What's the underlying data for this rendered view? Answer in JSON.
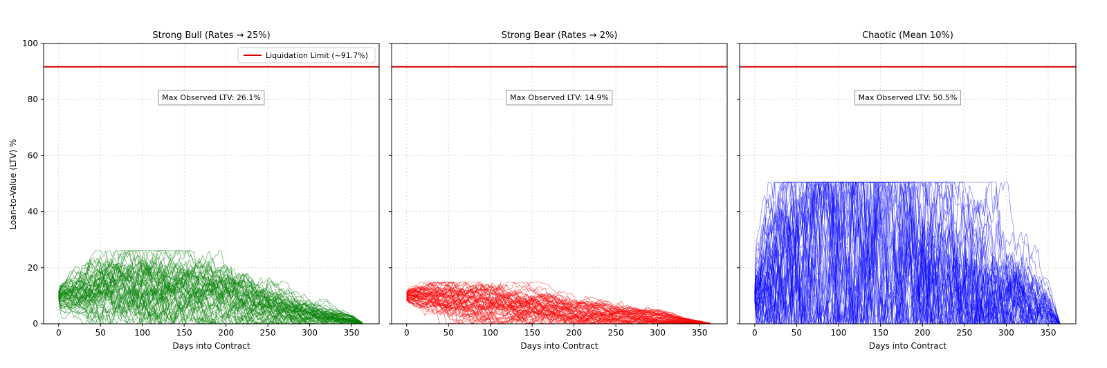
{
  "figure": {
    "shared_ylabel": "Loan-to-Value (LTV) %",
    "shared_xlabel": "Days into Contract",
    "legend_label": "Liquidation Limit (~91.7%)",
    "legend_placement": "upper-right of first panel",
    "limit_color": "#d40000"
  },
  "chart_data": [
    {
      "type": "line",
      "title": "Strong Bull (Rates → 25%)",
      "xlabel": "Days into Contract",
      "ylabel": "Loan-to-Value (LTV) %",
      "xlim": [
        -18,
        383
      ],
      "ylim": [
        0,
        100
      ],
      "x_ticks": [
        0,
        50,
        100,
        150,
        200,
        250,
        300,
        350
      ],
      "y_ticks": [
        0,
        20,
        40,
        60,
        80,
        100
      ],
      "grid": true,
      "limit_line": {
        "label": "Liquidation Limit (~91.7%)",
        "value": 91.7,
        "color": "#d40000"
      },
      "annotation": "Max Observed LTV: 26.1%",
      "max_observed_ltv": 26.1,
      "series_color": "#008000",
      "path_count": 60,
      "days": 365,
      "start_ltv": 10,
      "envelope_days": [
        0,
        50,
        100,
        150,
        200,
        250,
        300,
        350,
        365
      ],
      "envelope_upper": [
        13,
        22,
        25,
        22,
        18,
        13,
        8,
        3,
        0
      ],
      "envelope_lower": [
        6,
        2,
        0,
        1,
        0,
        0,
        0,
        0,
        0
      ],
      "envelope_median": [
        10,
        11,
        12,
        11,
        9,
        6,
        3,
        1,
        0
      ]
    },
    {
      "type": "line",
      "title": "Strong Bear (Rates → 2%)",
      "xlabel": "Days into Contract",
      "ylabel": "Loan-to-Value (LTV) %",
      "xlim": [
        -18,
        383
      ],
      "ylim": [
        0,
        100
      ],
      "x_ticks": [
        0,
        50,
        100,
        150,
        200,
        250,
        300,
        350
      ],
      "y_ticks": [
        0,
        20,
        40,
        60,
        80,
        100
      ],
      "grid": true,
      "limit_line": {
        "label": "Liquidation Limit (~91.7%)",
        "value": 91.7,
        "color": "#d40000"
      },
      "annotation": "Max Observed LTV: 14.9%",
      "max_observed_ltv": 14.9,
      "series_color": "#ff0000",
      "path_count": 60,
      "days": 365,
      "start_ltv": 10,
      "envelope_days": [
        0,
        50,
        100,
        150,
        200,
        250,
        300,
        350,
        365
      ],
      "envelope_upper": [
        12,
        14,
        12,
        10,
        8,
        6,
        4,
        1,
        0
      ],
      "envelope_lower": [
        8,
        3,
        1,
        0,
        0,
        0,
        0,
        0,
        0
      ],
      "envelope_median": [
        10,
        8,
        6,
        5,
        3,
        2,
        1,
        0,
        0
      ]
    },
    {
      "type": "line",
      "title": "Chaotic (Mean 10%)",
      "xlabel": "Days into Contract",
      "ylabel": "Loan-to-Value (LTV) %",
      "xlim": [
        -18,
        383
      ],
      "ylim": [
        0,
        100
      ],
      "x_ticks": [
        0,
        50,
        100,
        150,
        200,
        250,
        300,
        350
      ],
      "y_ticks": [
        0,
        20,
        40,
        60,
        80,
        100
      ],
      "grid": true,
      "limit_line": {
        "label": "Liquidation Limit (~91.7%)",
        "value": 91.7,
        "color": "#d40000"
      },
      "annotation": "Max Observed LTV: 50.5%",
      "max_observed_ltv": 50.5,
      "series_color": "#0000ff",
      "path_count": 60,
      "days": 365,
      "start_ltv": 10,
      "envelope_days": [
        0,
        50,
        100,
        150,
        200,
        250,
        300,
        350,
        365
      ],
      "envelope_upper": [
        20,
        45,
        50,
        48,
        38,
        30,
        22,
        8,
        0
      ],
      "envelope_lower": [
        5,
        0,
        0,
        0,
        0,
        0,
        0,
        0,
        0
      ],
      "envelope_median": [
        10,
        18,
        18,
        16,
        13,
        10,
        6,
        2,
        0
      ]
    }
  ]
}
